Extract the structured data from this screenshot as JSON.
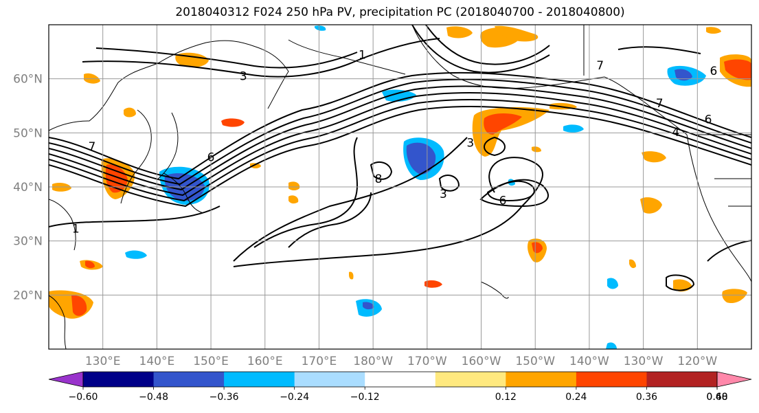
{
  "title": "2018040312 F024 250 hPa PV, precipitation PC (2018040700 - 2018040800)",
  "map": {
    "lon_range": [
      120,
      250
    ],
    "lat_range": [
      10,
      70
    ],
    "lon_ticks": [
      {
        "lon": 130,
        "label": "130°E"
      },
      {
        "lon": 140,
        "label": "140°E"
      },
      {
        "lon": 150,
        "label": "150°E"
      },
      {
        "lon": 160,
        "label": "160°E"
      },
      {
        "lon": 170,
        "label": "170°E"
      },
      {
        "lon": 180,
        "label": "180°W"
      },
      {
        "lon": 190,
        "label": "170°W"
      },
      {
        "lon": 200,
        "label": "160°W"
      },
      {
        "lon": 210,
        "label": "150°W"
      },
      {
        "lon": 220,
        "label": "140°W"
      },
      {
        "lon": 230,
        "label": "130°W"
      },
      {
        "lon": 240,
        "label": "120°W"
      }
    ],
    "lat_ticks": [
      {
        "lat": 60,
        "label": "60°N"
      },
      {
        "lat": 50,
        "label": "50°N"
      },
      {
        "lat": 40,
        "label": "40°N"
      },
      {
        "lat": 30,
        "label": "30°N"
      },
      {
        "lat": 20,
        "label": "20°N"
      }
    ],
    "contour_labels": [
      {
        "text": "1",
        "lon": 178,
        "lat": 64.5
      },
      {
        "text": "7",
        "lon": 222,
        "lat": 62.5
      },
      {
        "text": "6",
        "lon": 243,
        "lat": 61.5
      },
      {
        "text": "6",
        "lon": 242,
        "lat": 52.5
      },
      {
        "text": "4",
        "lon": 236,
        "lat": 50.2
      },
      {
        "text": "7",
        "lon": 233,
        "lat": 55.5
      },
      {
        "text": "3",
        "lon": 156,
        "lat": 60.5
      },
      {
        "text": "7",
        "lon": 128,
        "lat": 47.5
      },
      {
        "text": "6",
        "lon": 150,
        "lat": 45.5
      },
      {
        "text": "3",
        "lon": 198,
        "lat": 48.2
      },
      {
        "text": "3",
        "lon": 193,
        "lat": 38.7
      },
      {
        "text": "6",
        "lon": 204,
        "lat": 37.5
      },
      {
        "text": "8",
        "lon": 181,
        "lat": 41.5
      },
      {
        "text": "1",
        "lon": 125,
        "lat": 32.3
      }
    ],
    "colors": {
      "neg_lt_-0.60": "#9933cc",
      "neg_-0.60_-0.48": "#000088",
      "neg_-0.48_-0.36": "#3355cc",
      "neg_-0.36_-0.24": "#00bbff",
      "neg_-0.24_-0.12": "#aaddff",
      "neutral": "#ffffff",
      "pos_0.12_0.24": "#ffe97f",
      "pos_0.24_0.36": "#ffa500",
      "pos_0.36_0.48": "#ff4500",
      "pos_0.48_0.60": "#b22222",
      "pos_gt_0.60": "#ff88aa"
    }
  },
  "colorbar": {
    "colors": [
      "#9933cc",
      "#000088",
      "#3355cc",
      "#00bbff",
      "#aaddff",
      "#ffffff",
      "#ffe97f",
      "#ffa500",
      "#ff4500",
      "#b22222",
      "#ff88aa"
    ],
    "tick_labels": [
      "−0.60",
      "−0.48",
      "−0.36",
      "−0.24",
      "−0.12",
      "0.12",
      "0.24",
      "0.36",
      "0.48",
      "0.60"
    ]
  }
}
